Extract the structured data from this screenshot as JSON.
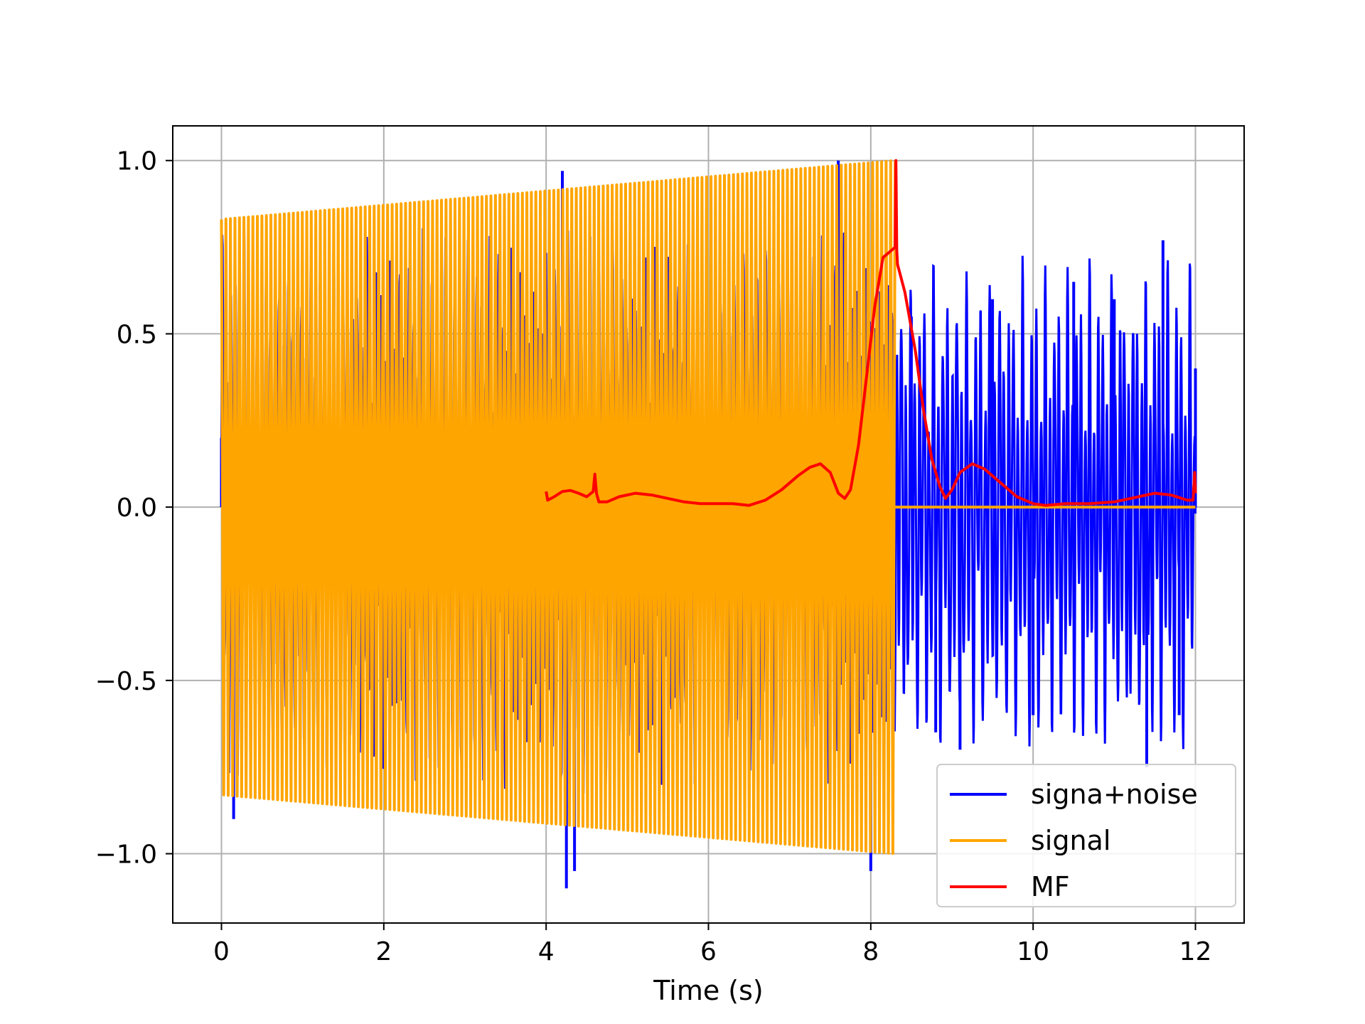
{
  "chart_data": {
    "type": "line",
    "title": "",
    "xlabel": "Time (s)",
    "ylabel": "",
    "xlim": [
      -0.6,
      12.6
    ],
    "ylim": [
      -1.2,
      1.1
    ],
    "xticks": [
      0,
      2,
      4,
      6,
      8,
      10,
      12
    ],
    "yticks": [
      -1.0,
      -0.5,
      0.0,
      0.5,
      1.0
    ],
    "xtick_labels": [
      "0",
      "2",
      "4",
      "6",
      "8",
      "10",
      "12"
    ],
    "ytick_labels": [
      "−1.0",
      "−0.5",
      "0.0",
      "0.5",
      "1.0"
    ],
    "grid": true,
    "legend_position": "lower-right",
    "colors": {
      "signal_noise": "#0000ff",
      "signal": "#ffa500",
      "mf": "#ff0000"
    },
    "series": [
      {
        "name": "signa+noise",
        "color": "#0000ff",
        "description_points": {
          "x": [
            0,
            0.15,
            4.2,
            4.25,
            4.35,
            7.6,
            8.0,
            8.3,
            8.5,
            8.8,
            9.1,
            9.5,
            10.0,
            10.5,
            11.0,
            11.4,
            11.6,
            11.8,
            12.0
          ],
          "y": [
            0.2,
            -0.9,
            0.97,
            -1.1,
            -1.05,
            1.0,
            -1.05,
            0.0,
            0.55,
            -0.65,
            -0.7,
            0.6,
            -0.6,
            0.65,
            0.6,
            -0.75,
            0.77,
            -0.6,
            0.4
          ]
        }
      },
      {
        "name": "signal",
        "color": "#ffa500",
        "envelope_x": [
          0.0,
          8.3
        ],
        "envelope_y": [
          0.83,
          1.0
        ],
        "after_x": [
          8.3,
          12.0
        ],
        "after_y": [
          0.0,
          0.0
        ]
      },
      {
        "name": "MF",
        "color": "#ff0000",
        "x": [
          4.0,
          4.02,
          4.1,
          4.2,
          4.3,
          4.4,
          4.5,
          4.58,
          4.6,
          4.62,
          4.65,
          4.75,
          4.9,
          5.1,
          5.3,
          5.5,
          5.7,
          5.9,
          6.1,
          6.3,
          6.5,
          6.7,
          6.9,
          7.1,
          7.25,
          7.38,
          7.5,
          7.6,
          7.68,
          7.75,
          7.85,
          7.95,
          8.05,
          8.15,
          8.25,
          8.3,
          8.31,
          8.32,
          8.33,
          8.42,
          8.55,
          8.65,
          8.75,
          8.85,
          8.92,
          9.0,
          9.1,
          9.25,
          9.4,
          9.6,
          9.8,
          10.0,
          10.15,
          10.4,
          10.7,
          11.0,
          11.3,
          11.5,
          11.7,
          11.9,
          11.97,
          11.99,
          12.0
        ],
        "y": [
          0.045,
          0.02,
          0.03,
          0.045,
          0.048,
          0.04,
          0.03,
          0.045,
          0.095,
          0.04,
          0.015,
          0.015,
          0.03,
          0.04,
          0.035,
          0.025,
          0.015,
          0.01,
          0.01,
          0.01,
          0.005,
          0.02,
          0.05,
          0.09,
          0.115,
          0.125,
          0.1,
          0.04,
          0.025,
          0.05,
          0.18,
          0.38,
          0.58,
          0.72,
          0.74,
          0.75,
          1.0,
          0.74,
          0.7,
          0.62,
          0.45,
          0.28,
          0.14,
          0.06,
          0.025,
          0.05,
          0.1,
          0.125,
          0.11,
          0.07,
          0.03,
          0.01,
          0.005,
          0.01,
          0.01,
          0.015,
          0.03,
          0.04,
          0.035,
          0.02,
          0.02,
          0.1,
          0.04
        ]
      }
    ]
  }
}
